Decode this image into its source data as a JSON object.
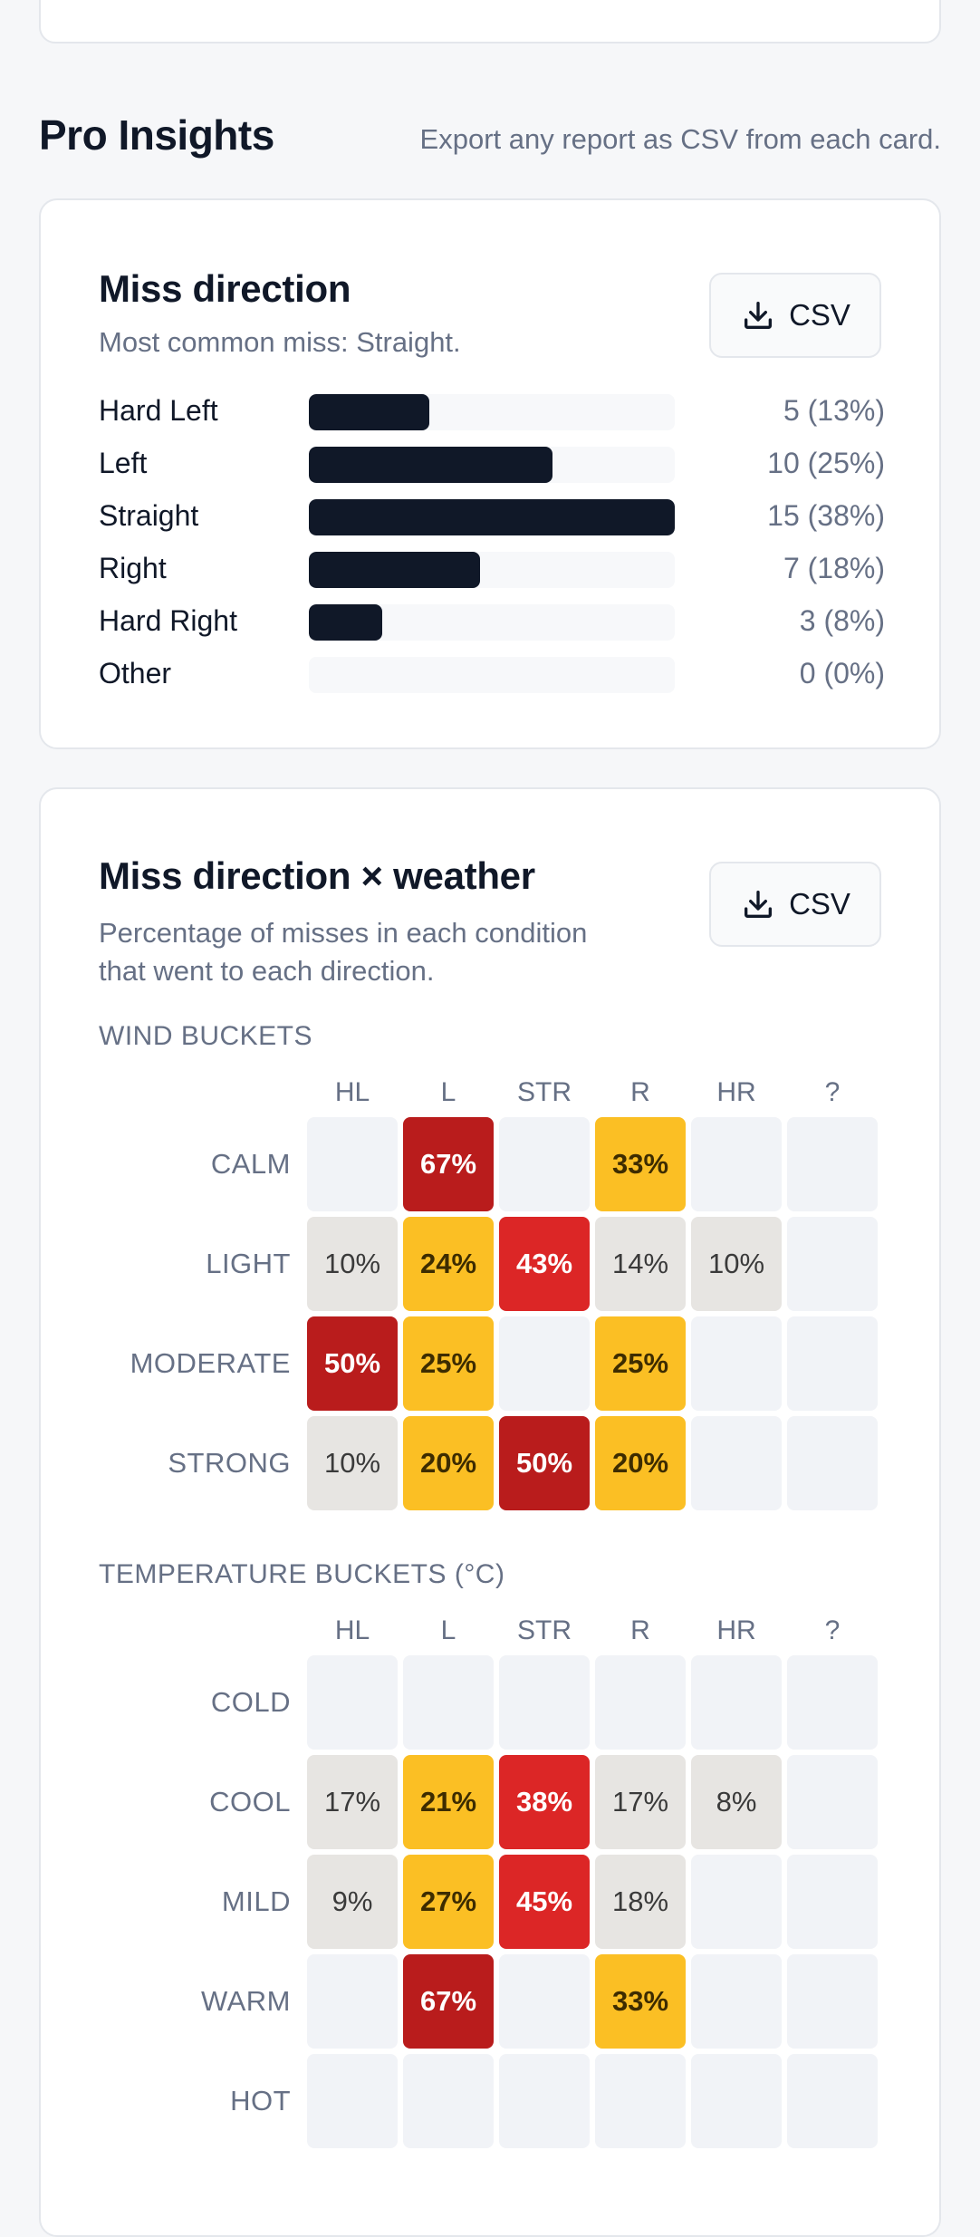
{
  "section": {
    "title": "Pro Insights",
    "note": "Export any report as CSV from each card."
  },
  "miss_card": {
    "title": "Miss direction",
    "subtitle": "Most common miss: Straight.",
    "csv_label": "CSV",
    "rows": [
      {
        "label": "Hard Left",
        "value": "5 (13%)",
        "fraction": 0.33
      },
      {
        "label": "Left",
        "value": "10 (25%)",
        "fraction": 0.667
      },
      {
        "label": "Straight",
        "value": "15 (38%)",
        "fraction": 1.0
      },
      {
        "label": "Right",
        "value": "7 (18%)",
        "fraction": 0.467
      },
      {
        "label": "Hard Right",
        "value": "3 (8%)",
        "fraction": 0.2
      },
      {
        "label": "Other",
        "value": "0 (0%)",
        "fraction": 0.0
      }
    ]
  },
  "weather_card": {
    "title": "Miss direction × weather",
    "subtitle_line1": "Percentage of misses in each condition",
    "subtitle_line2": "that went to each direction.",
    "csv_label": "CSV",
    "columns": [
      "HL",
      "L",
      "STR",
      "R",
      "HR",
      "?"
    ],
    "wind": {
      "caption": "WIND BUCKETS",
      "rows": [
        {
          "label": "CALM",
          "cells": [
            "",
            "67%",
            "",
            "33%",
            "",
            ""
          ],
          "levels": [
            "empty",
            "top",
            "empty",
            "mid",
            "empty",
            "empty"
          ]
        },
        {
          "label": "LIGHT",
          "cells": [
            "10%",
            "24%",
            "43%",
            "14%",
            "10%",
            ""
          ],
          "levels": [
            "low",
            "mid",
            "high",
            "low",
            "low",
            "empty"
          ]
        },
        {
          "label": "MODERATE",
          "cells": [
            "50%",
            "25%",
            "",
            "25%",
            "",
            ""
          ],
          "levels": [
            "top",
            "mid",
            "empty",
            "mid",
            "empty",
            "empty"
          ]
        },
        {
          "label": "STRONG",
          "cells": [
            "10%",
            "20%",
            "50%",
            "20%",
            "",
            ""
          ],
          "levels": [
            "low",
            "mid",
            "top",
            "mid",
            "empty",
            "empty"
          ]
        }
      ]
    },
    "temperature": {
      "caption": "TEMPERATURE BUCKETS (°C)",
      "rows": [
        {
          "label": "COLD",
          "cells": [
            "",
            "",
            "",
            "",
            "",
            ""
          ],
          "levels": [
            "empty",
            "empty",
            "empty",
            "empty",
            "empty",
            "empty"
          ]
        },
        {
          "label": "COOL",
          "cells": [
            "17%",
            "21%",
            "38%",
            "17%",
            "8%",
            ""
          ],
          "levels": [
            "low",
            "mid",
            "high",
            "low",
            "low",
            "empty"
          ]
        },
        {
          "label": "MILD",
          "cells": [
            "9%",
            "27%",
            "45%",
            "18%",
            "",
            ""
          ],
          "levels": [
            "low",
            "mid",
            "high",
            "low",
            "empty",
            "empty"
          ]
        },
        {
          "label": "WARM",
          "cells": [
            "",
            "67%",
            "",
            "33%",
            "",
            ""
          ],
          "levels": [
            "empty",
            "top",
            "empty",
            "mid",
            "empty",
            "empty"
          ]
        },
        {
          "label": "HOT",
          "cells": [
            "",
            "",
            "",
            "",
            "",
            ""
          ],
          "levels": [
            "empty",
            "empty",
            "empty",
            "empty",
            "empty",
            "empty"
          ]
        }
      ]
    }
  }
}
